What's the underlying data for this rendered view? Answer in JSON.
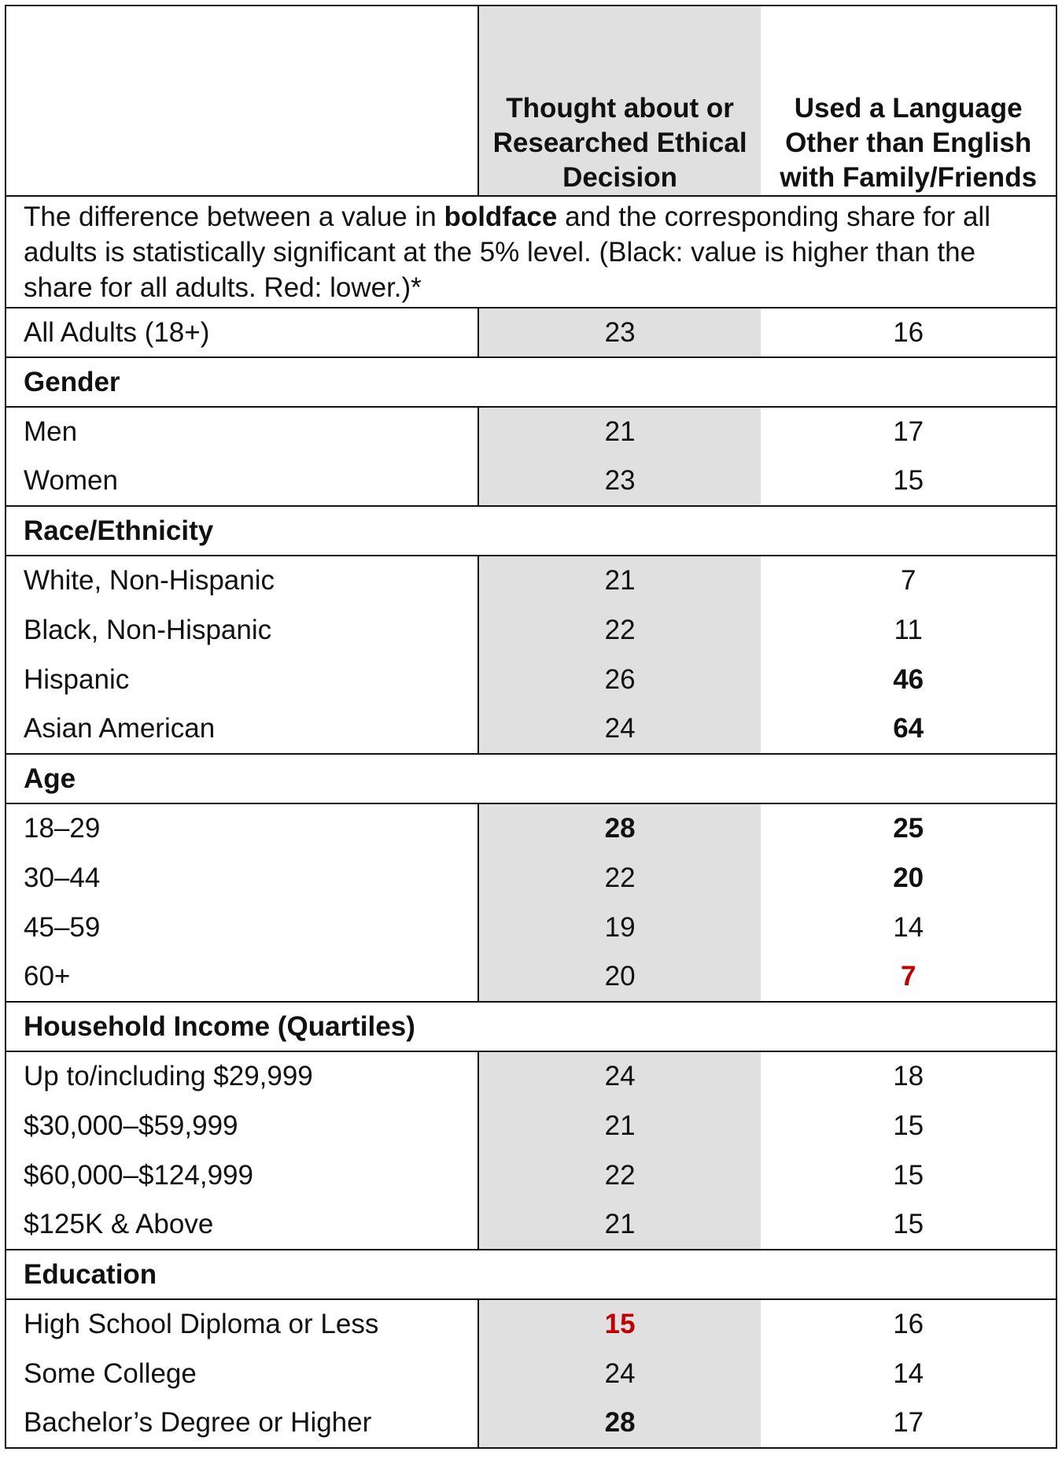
{
  "header": {
    "columns": [
      "Thought about or Researched Ethical Decision",
      "Used a Language Other than English with Family/Friends"
    ]
  },
  "note": {
    "parts": [
      "The difference between a value in ",
      "boldface",
      " and the corresponding share for all adults is statistically significant at the 5% level. (Black: value is higher than the share for all adults. Red: lower.)*"
    ]
  },
  "table": {
    "overall": {
      "label": "All Adults (18+)",
      "values": [
        "23",
        "16"
      ],
      "styles": [
        "normal",
        "normal"
      ]
    },
    "groups": [
      {
        "title": "Gender",
        "rows": [
          {
            "label": "Men",
            "values": [
              "21",
              "17"
            ],
            "styles": [
              "normal",
              "normal"
            ]
          },
          {
            "label": "Women",
            "values": [
              "23",
              "15"
            ],
            "styles": [
              "normal",
              "normal"
            ]
          }
        ]
      },
      {
        "title": "Race/Ethnicity",
        "rows": [
          {
            "label": "White, Non-Hispanic",
            "values": [
              "21",
              "7"
            ],
            "styles": [
              "normal",
              "normal"
            ]
          },
          {
            "label": "Black, Non-Hispanic",
            "values": [
              "22",
              "11"
            ],
            "styles": [
              "normal",
              "normal"
            ]
          },
          {
            "label": "Hispanic",
            "values": [
              "26",
              "46"
            ],
            "styles": [
              "normal",
              "bold"
            ]
          },
          {
            "label": "Asian American",
            "values": [
              "24",
              "64"
            ],
            "styles": [
              "normal",
              "bold"
            ]
          }
        ]
      },
      {
        "title": "Age",
        "rows": [
          {
            "label": "18–29",
            "values": [
              "28",
              "25"
            ],
            "styles": [
              "bold",
              "bold"
            ]
          },
          {
            "label": "30–44",
            "values": [
              "22",
              "20"
            ],
            "styles": [
              "normal",
              "bold"
            ]
          },
          {
            "label": "45–59",
            "values": [
              "19",
              "14"
            ],
            "styles": [
              "normal",
              "normal"
            ]
          },
          {
            "label": "60+",
            "values": [
              "20",
              "7"
            ],
            "styles": [
              "normal",
              "red"
            ]
          }
        ]
      },
      {
        "title": "Household Income (Quartiles)",
        "rows": [
          {
            "label": "Up to/including $29,999",
            "values": [
              "24",
              "18"
            ],
            "styles": [
              "normal",
              "normal"
            ]
          },
          {
            "label": "$30,000–$59,999",
            "values": [
              "21",
              "15"
            ],
            "styles": [
              "normal",
              "normal"
            ]
          },
          {
            "label": "$60,000–$124,999",
            "values": [
              "22",
              "15"
            ],
            "styles": [
              "normal",
              "normal"
            ]
          },
          {
            "label": "$125K & Above",
            "values": [
              "21",
              "15"
            ],
            "styles": [
              "normal",
              "normal"
            ]
          }
        ]
      },
      {
        "title": "Education",
        "rows": [
          {
            "label": "High School Diploma or Less",
            "values": [
              "15",
              "16"
            ],
            "styles": [
              "red",
              "normal"
            ]
          },
          {
            "label": "Some College",
            "values": [
              "24",
              "14"
            ],
            "styles": [
              "normal",
              "normal"
            ]
          },
          {
            "label": "Bachelor’s Degree or Higher",
            "values": [
              "28",
              "17"
            ],
            "styles": [
              "bold",
              "normal"
            ]
          }
        ]
      }
    ]
  }
}
